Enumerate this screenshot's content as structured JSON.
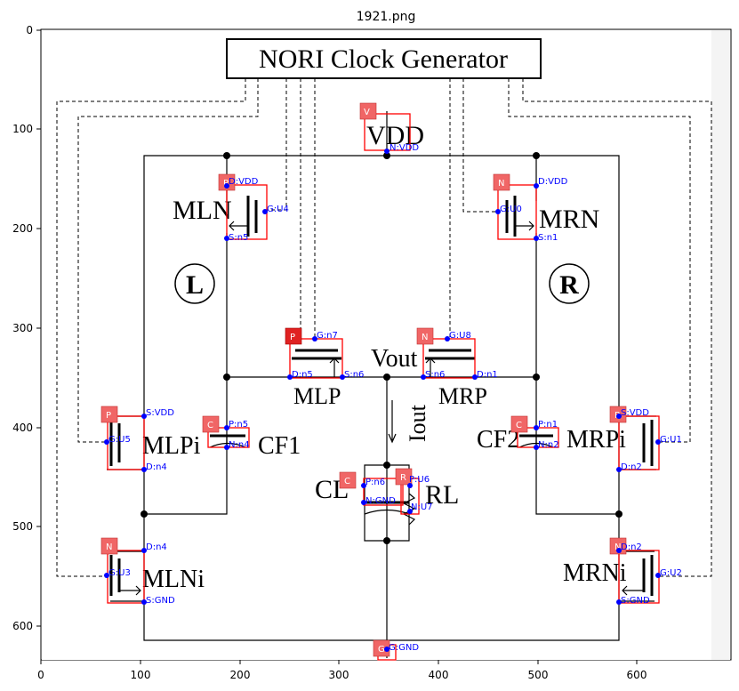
{
  "title": "1921.png",
  "x_ticks": [
    "0",
    "100",
    "200",
    "300",
    "400",
    "500",
    "600"
  ],
  "y_ticks": [
    "0",
    "100",
    "200",
    "300",
    "400",
    "500",
    "600"
  ],
  "header": "NORI Clock Generator",
  "labels": {
    "vdd": "VDD",
    "mln": "MLN",
    "mrn": "MRN",
    "l_circle": "L",
    "r_circle": "R",
    "vout": "Vout",
    "iout": "Iout",
    "mlp": "MLP",
    "mrp": "MRP",
    "cf1": "CF1",
    "cf2": "CF2",
    "mlpi": "MLPi",
    "mrpi": "MRPi",
    "cl": "CL",
    "rl": "RL",
    "mlni": "MLNi",
    "mrni": "MRNi"
  },
  "components": [
    {
      "type": "V",
      "pins": [
        "N:VDD"
      ]
    },
    {
      "type": "P",
      "pins": [
        "D:VDD",
        "G:U4",
        "S:n5"
      ]
    },
    {
      "type": "N",
      "pins": [
        "D:VDD",
        "G:U0",
        "S:n1"
      ]
    },
    {
      "type": "P",
      "pins": [
        "G:n7",
        "D:n5",
        "S:n6"
      ]
    },
    {
      "type": "N",
      "pins": [
        "G:U8",
        "S:n6",
        "D:n1"
      ]
    },
    {
      "type": "P",
      "pins": [
        "S:VDD",
        "G:U5",
        "D:n4"
      ]
    },
    {
      "type": "C",
      "pins": [
        "P:n5",
        "N:n4"
      ]
    },
    {
      "type": "C",
      "pins": [
        "P:n1",
        "N:n2"
      ]
    },
    {
      "type": "P",
      "pins": [
        "S:VDD",
        "G:U1",
        "D:n2"
      ]
    },
    {
      "type": "C",
      "pins": [
        "P:n6",
        "N:GND"
      ]
    },
    {
      "type": "R",
      "pins": [
        "P:U6",
        "N:U7"
      ]
    },
    {
      "type": "N",
      "pins": [
        "D:n4",
        "G:U3",
        "S:GND"
      ]
    },
    {
      "type": "N",
      "pins": [
        "D:n2",
        "G:U2",
        "S:GND"
      ]
    },
    {
      "type": "G",
      "pins": [
        "G:GND"
      ]
    }
  ]
}
